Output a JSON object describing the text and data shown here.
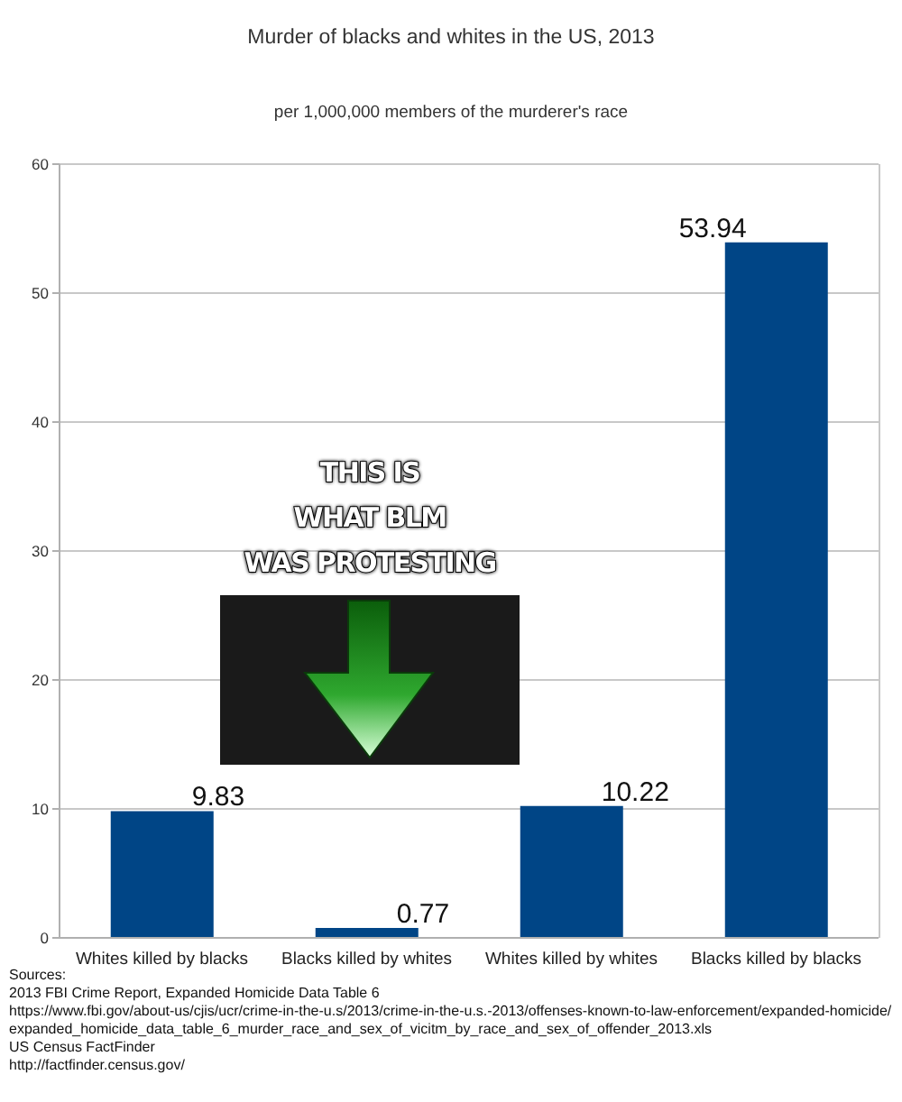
{
  "chart_data": {
    "type": "bar",
    "title": "Murder of blacks and whites in the US, 2013",
    "subtitle": "per 1,000,000 members of the murderer's race",
    "categories": [
      "Whites killed by blacks",
      "Blacks killed by whites",
      "Whites killed by whites",
      "Blacks killed by blacks"
    ],
    "values": [
      9.83,
      0.77,
      10.22,
      53.94
    ],
    "color": "#004586",
    "ylim": [
      0,
      60
    ],
    "yticks": [
      0,
      10,
      20,
      30,
      40,
      50,
      60
    ],
    "grid": "y",
    "data_labels": true,
    "annotations": [
      "THIS IS\nWHAT BLM\nWAS PROTESTING",
      "Sources:",
      "2013 FBI Crime Report, Expanded Homicide Data Table 6",
      "https://www.fbi.gov/about-us/cjis/ucr/crime-in-the-u.s/2013/crime-in-the-u.s.-2013/offenses-known-to-law-enforcement/expanded-homicide/expanded_homicide_data_table_6_murder_race_and_sex_of_vicitm_by_race_and_sex_of_offender_2013.xls",
      "US Census FactFinder",
      "http://factfinder.census.gov/"
    ]
  }
}
